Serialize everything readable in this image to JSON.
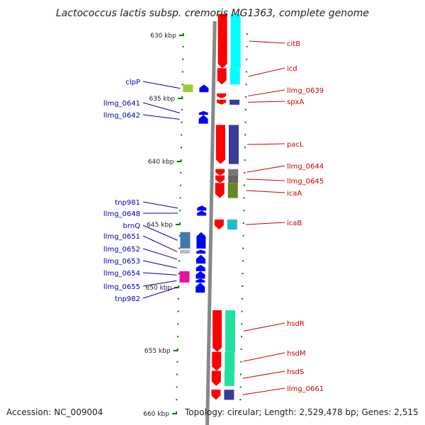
{
  "title": "Lactococcus lactis subsp. cremoris MG1363, complete genome",
  "footer": {
    "accession": "Accession: NC_009004",
    "topology": "Topology: circular; Length: 2,529,478 bp; Genes: 2,515"
  },
  "colors": {
    "forward_label": "#cc0000",
    "reverse_label": "#0000aa",
    "forward_gene": "#ff0000",
    "reverse_gene": "#0000ff",
    "tick": "#007700",
    "backbone": "#888888"
  },
  "scale": {
    "ticks": [
      {
        "kbp": 630,
        "label": "630 kbp"
      },
      {
        "kbp": 635,
        "label": "635 kbp"
      },
      {
        "kbp": 640,
        "label": "640 kbp"
      },
      {
        "kbp": 645,
        "label": "645 kbp"
      },
      {
        "kbp": 650,
        "label": "650 kbp"
      },
      {
        "kbp": 655,
        "label": "655 kbp"
      },
      {
        "kbp": 660,
        "label": "660 kbp"
      }
    ]
  },
  "forward_genes": [
    {
      "name": "citB",
      "start_kbp": 628.3,
      "end_kbp": 632.6,
      "cog_color": "#00ffff"
    },
    {
      "name": "icd",
      "start_kbp": 632.6,
      "end_kbp": 633.9,
      "cog_color": "#00ffff"
    },
    {
      "name": "llmg_0639",
      "start_kbp": 634.6,
      "end_kbp": 635.0,
      "cog_color": ""
    },
    {
      "name": "spxA",
      "start_kbp": 635.1,
      "end_kbp": 635.5,
      "cog_color": "#3a3a99"
    },
    {
      "name": "pacL",
      "start_kbp": 637.1,
      "end_kbp": 640.2,
      "cog_color": "#3a3a99"
    },
    {
      "name": "llmg_0644",
      "start_kbp": 640.6,
      "end_kbp": 641.1,
      "cog_color": "#777777"
    },
    {
      "name": "llmg_0645",
      "start_kbp": 641.1,
      "end_kbp": 641.7,
      "cog_color": "#666666"
    },
    {
      "name": "icaA",
      "start_kbp": 641.7,
      "end_kbp": 642.9,
      "cog_color": "#668822"
    },
    {
      "name": "icaB",
      "start_kbp": 644.6,
      "end_kbp": 645.4,
      "cog_color": "#22bbcc"
    },
    {
      "name": "hsdR",
      "start_kbp": 651.8,
      "end_kbp": 655.1,
      "cog_color": "#22e0a0"
    },
    {
      "name": "hsdM",
      "start_kbp": 655.1,
      "end_kbp": 656.6,
      "cog_color": "#22e0a0"
    },
    {
      "name": "hsdS",
      "start_kbp": 656.6,
      "end_kbp": 657.8,
      "cog_color": "#22e0a0"
    },
    {
      "name": "llmg_0661",
      "start_kbp": 658.1,
      "end_kbp": 658.9,
      "cog_color": "#3a3a99"
    }
  ],
  "reverse_genes": [
    {
      "name": "clpP",
      "start_kbp": 633.9,
      "end_kbp": 634.5,
      "cog_color": "#99cc33"
    },
    {
      "name": "llmg_0641",
      "start_kbp": 636.0,
      "end_kbp": 636.3,
      "cog_color": ""
    },
    {
      "name": "llmg_0642",
      "start_kbp": 636.3,
      "end_kbp": 637.0,
      "cog_color": ""
    },
    {
      "name": "tnp981",
      "start_kbp": 643.5,
      "end_kbp": 643.9,
      "cog_color": ""
    },
    {
      "name": "llmg_0648",
      "start_kbp": 643.9,
      "end_kbp": 644.3,
      "cog_color": ""
    },
    {
      "name": "brnQ",
      "start_kbp": 645.6,
      "end_kbp": 646.9,
      "cog_color": "#4477aa"
    },
    {
      "name": "llmg_0651",
      "start_kbp": 647.0,
      "end_kbp": 647.3,
      "cog_color": "#bbbbbb"
    },
    {
      "name": "llmg_0652",
      "start_kbp": 647.4,
      "end_kbp": 648.1,
      "cog_color": ""
    },
    {
      "name": "llmg_0653",
      "start_kbp": 648.2,
      "end_kbp": 648.7,
      "cog_color": ""
    },
    {
      "name": "llmg_0654",
      "start_kbp": 648.7,
      "end_kbp": 649.3,
      "cog_color": "#ee1199"
    },
    {
      "name": "llmg_0655",
      "start_kbp": 649.3,
      "end_kbp": 649.6,
      "cog_color": "#ee1199"
    },
    {
      "name": "tnp982",
      "start_kbp": 649.6,
      "end_kbp": 650.4,
      "cog_color": ""
    }
  ]
}
